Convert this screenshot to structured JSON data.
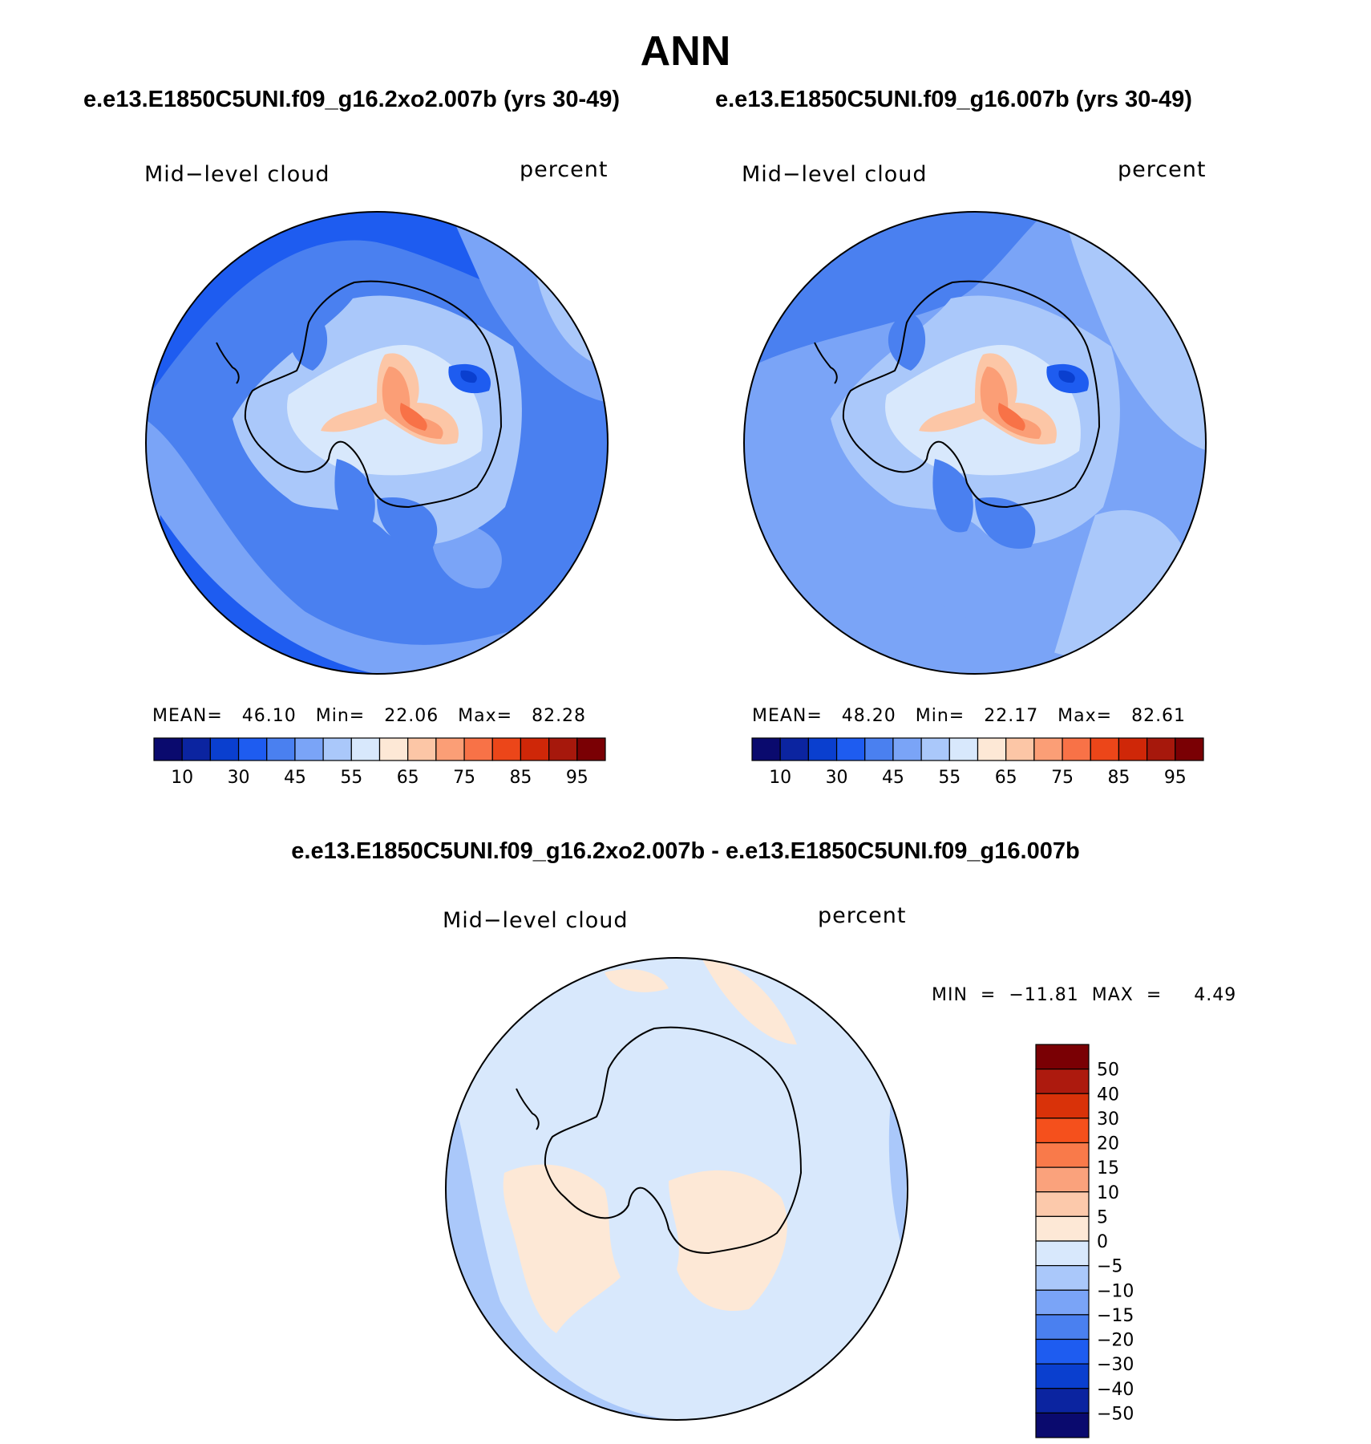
{
  "header": {
    "title": "ANN",
    "case_left": "e.e13.E1850C5UNI.f09_g16.2xo2.007b (yrs 30-49)",
    "case_right": "e.e13.E1850C5UNI.f09_g16.007b (yrs 30-49)",
    "diff_title": "e.e13.E1850C5UNI.f09_g16.2xo2.007b - e.e13.E1850C5UNI.f09_g16.007b"
  },
  "panels": {
    "left": {
      "variable": "Mid−level cloud",
      "units": "percent",
      "stats": "MEAN=   46.10   Min=   22.06   Max=   82.28"
    },
    "right": {
      "variable": "Mid−level cloud",
      "units": "percent",
      "stats": "MEAN=   48.20   Min=   22.17   Max=   82.61"
    },
    "diff": {
      "variable": "Mid−level cloud",
      "units": "percent",
      "stats": "MIN  =  −11.81  MAX  =     4.49"
    }
  },
  "colorbar_abs": {
    "colors": [
      "#0a0a6e",
      "#0b24a0",
      "#0a3fcf",
      "#1e5cf0",
      "#4a80f0",
      "#7aa4f7",
      "#aac8fa",
      "#d8e8fc",
      "#fde8d6",
      "#fcc6a6",
      "#fb9e76",
      "#f87247",
      "#ec4619",
      "#cf2708",
      "#a6180c",
      "#7a0004"
    ],
    "labels": [
      "10",
      "30",
      "45",
      "55",
      "65",
      "75",
      "85",
      "95"
    ]
  },
  "colorbar_diff": {
    "colors": [
      "#7a0004",
      "#ad1a0e",
      "#d93209",
      "#f5501c",
      "#f97a4a",
      "#faa27c",
      "#fcc9ab",
      "#fde8d6",
      "#d8e8fc",
      "#aac8fa",
      "#7aa4f7",
      "#4a80f0",
      "#1e5cf0",
      "#0a3fcf",
      "#0b24a0",
      "#0a0a6e"
    ],
    "labels": [
      "50",
      "40",
      "30",
      "20",
      "15",
      "10",
      "5",
      "0",
      "−5",
      "−10",
      "−15",
      "−20",
      "−30",
      "−40",
      "−50"
    ]
  },
  "chart_data": [
    {
      "type": "heatmap",
      "projection": "south polar stereographic",
      "variable": "Mid−level cloud",
      "units": "percent",
      "case": "e.e13.E1850C5UNI.f09_g16.2xo2.007b (yrs 30-49)",
      "mean": 46.1,
      "min": 22.06,
      "max": 82.28,
      "contour_levels": [
        10,
        15,
        20,
        25,
        30,
        35,
        40,
        45,
        50,
        55,
        60,
        65,
        70,
        75,
        80,
        85,
        90,
        95
      ]
    },
    {
      "type": "heatmap",
      "projection": "south polar stereographic",
      "variable": "Mid−level cloud",
      "units": "percent",
      "case": "e.e13.E1850C5UNI.f09_g16.007b (yrs 30-49)",
      "mean": 48.2,
      "min": 22.17,
      "max": 82.61,
      "contour_levels": [
        10,
        15,
        20,
        25,
        30,
        35,
        40,
        45,
        50,
        55,
        60,
        65,
        70,
        75,
        80,
        85,
        90,
        95
      ]
    },
    {
      "type": "heatmap",
      "projection": "south polar stereographic",
      "variable": "Mid−level cloud",
      "units": "percent",
      "case": "e.e13.E1850C5UNI.f09_g16.2xo2.007b - e.e13.E1850C5UNI.f09_g16.007b",
      "min": -11.81,
      "max": 4.49,
      "contour_levels": [
        -50,
        -40,
        -30,
        -20,
        -15,
        -10,
        -5,
        0,
        5,
        10,
        15,
        20,
        30,
        40,
        50
      ]
    }
  ]
}
